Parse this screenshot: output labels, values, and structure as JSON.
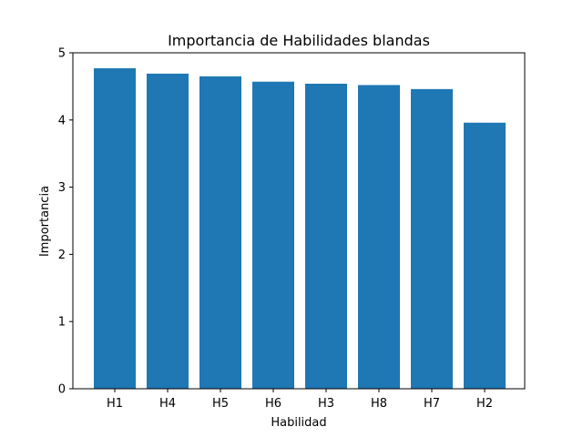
{
  "chart_data": {
    "type": "bar",
    "title": "Importancia de Habilidades blandas",
    "xlabel": "Habilidad",
    "ylabel": "Importancia",
    "categories": [
      "H1",
      "H4",
      "H5",
      "H6",
      "H3",
      "H8",
      "H7",
      "H2"
    ],
    "values": [
      4.77,
      4.69,
      4.65,
      4.57,
      4.54,
      4.52,
      4.46,
      3.96
    ],
    "ylim": [
      0,
      5
    ],
    "yticks": [
      "0",
      "1",
      "2",
      "3",
      "4",
      "5"
    ],
    "grid": false,
    "bar_color": "#1f77b4"
  }
}
